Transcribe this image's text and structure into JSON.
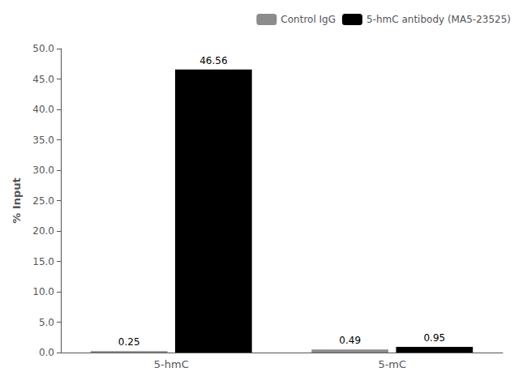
{
  "chart_data": {
    "type": "bar",
    "categories": [
      "5-hmC",
      "5-mC"
    ],
    "series": [
      {
        "name": "Control IgG",
        "color": "#8c8c8c",
        "values": [
          0.25,
          0.49
        ]
      },
      {
        "name": "5-hmC antibody (MA5-23525)",
        "color": "#000000",
        "values": [
          46.56,
          0.95
        ]
      }
    ],
    "ylabel": "% Input",
    "ylim": [
      0,
      50.0
    ],
    "yticks": [
      {
        "value": 0,
        "label": "0.0"
      },
      {
        "value": 5,
        "label": "5.0"
      },
      {
        "value": 10,
        "label": "10.0"
      },
      {
        "value": 15,
        "label": "15.0"
      },
      {
        "value": 20,
        "label": "20.0"
      },
      {
        "value": 25,
        "label": "25.0"
      },
      {
        "value": 30,
        "label": "30.0"
      },
      {
        "value": 35,
        "label": "35.0"
      },
      {
        "value": 40,
        "label": "40.0"
      },
      {
        "value": 45,
        "label": "45.0"
      },
      {
        "value": 50,
        "label": "50.0"
      }
    ],
    "legend": "upper right",
    "data_labels": true,
    "grid": false
  }
}
